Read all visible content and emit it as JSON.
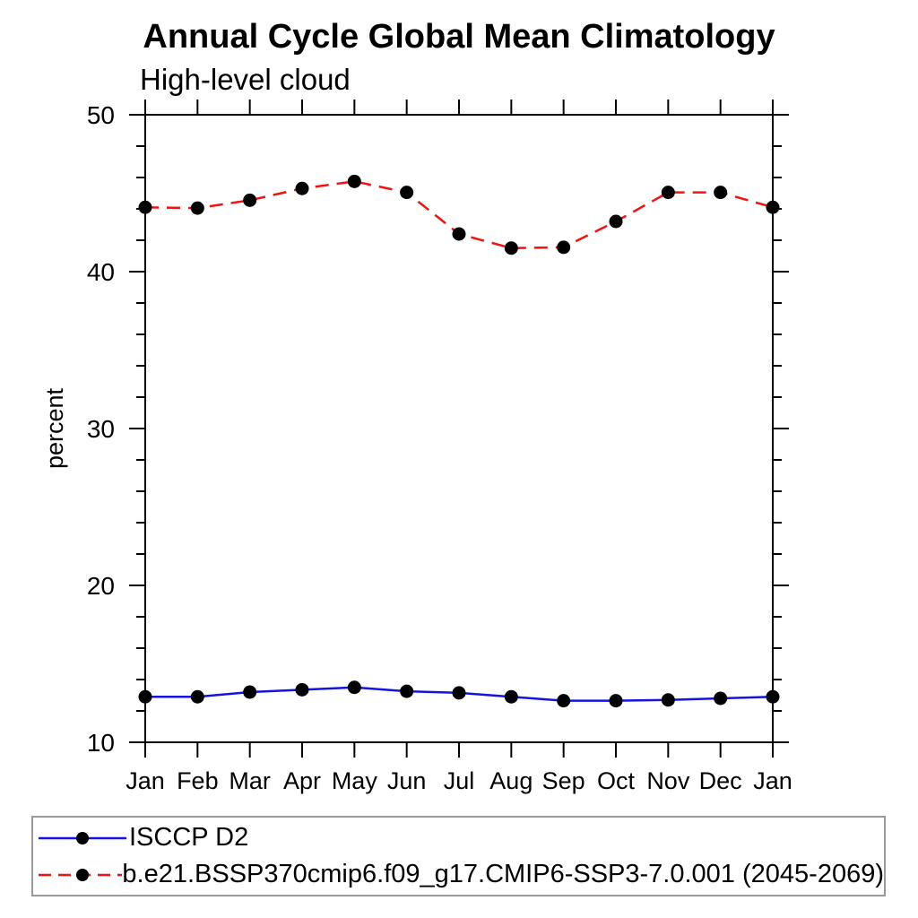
{
  "page": {
    "background": "#ffffff"
  },
  "chart_data": {
    "type": "line",
    "title": "Annual Cycle Global Mean Climatology",
    "subtitle": "High-level cloud",
    "xlabel": "",
    "ylabel": "percent",
    "categories": [
      "Jan",
      "Feb",
      "Mar",
      "Apr",
      "May",
      "Jun",
      "Jul",
      "Aug",
      "Sep",
      "Oct",
      "Nov",
      "Dec",
      "Jan"
    ],
    "ylim": [
      10,
      50
    ],
    "y_major_ticks": [
      10,
      20,
      30,
      40,
      50
    ],
    "y_minor_step": 2,
    "grid": false,
    "legend_position": "bottom",
    "axis_color": "#000000",
    "marker": "filled-circle",
    "marker_color": "#000000",
    "series": [
      {
        "name": "ISCCP D2",
        "color": "#1414e0",
        "line_style": "solid",
        "values": [
          12.9,
          12.9,
          13.2,
          13.35,
          13.5,
          13.25,
          13.15,
          12.9,
          12.65,
          12.65,
          12.7,
          12.8,
          12.9
        ]
      },
      {
        "name": "b.e21.BSSP370cmip6.f09_g17.CMIP6-SSP3-7.0.001 (2045-2069)",
        "color": "#ee1414",
        "line_style": "dashed",
        "values": [
          44.1,
          44.05,
          44.55,
          45.3,
          45.75,
          45.05,
          42.4,
          41.5,
          41.55,
          43.2,
          45.05,
          45.05,
          44.1
        ]
      }
    ]
  }
}
